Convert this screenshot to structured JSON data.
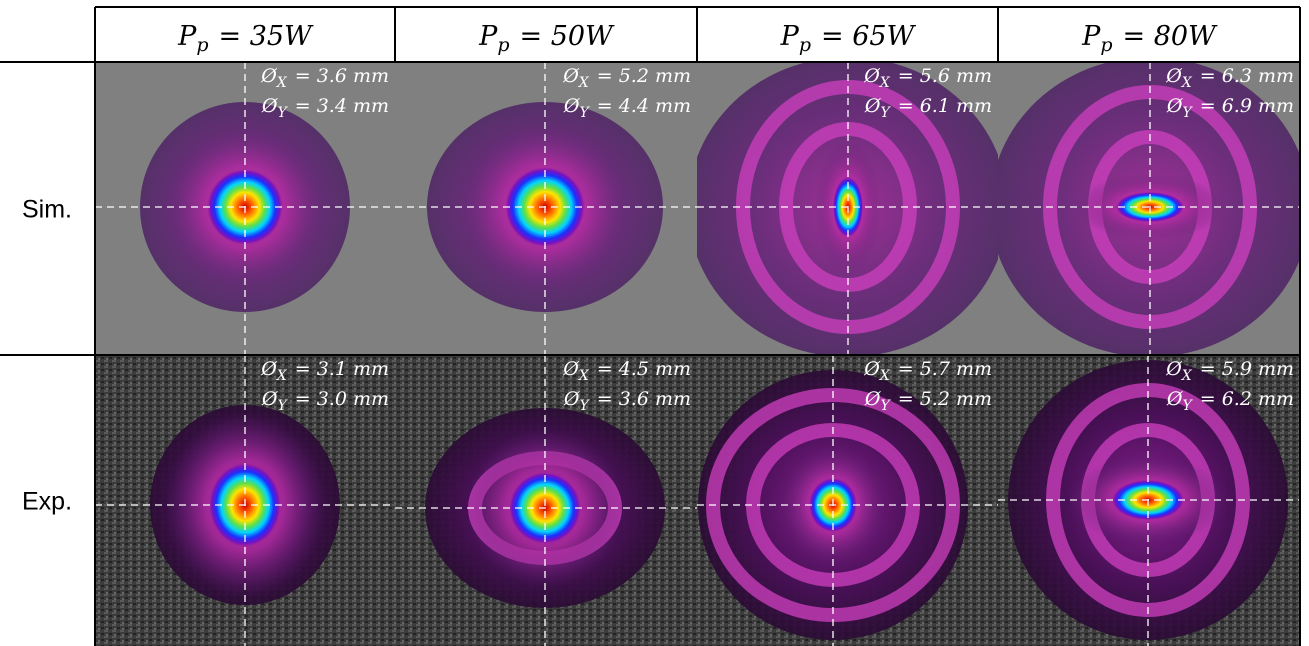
{
  "header": {
    "columns": [
      {
        "symbol": "P",
        "sub": "p",
        "rest": "= 35W"
      },
      {
        "symbol": "P",
        "sub": "p",
        "rest": "= 50W"
      },
      {
        "symbol": "P",
        "sub": "p",
        "rest": "= 65W"
      },
      {
        "symbol": "P",
        "sub": "p",
        "rest": "= 80W"
      }
    ]
  },
  "rows": [
    {
      "label": "Sim.",
      "cells": [
        {
          "x": {
            "symbol": "Ø",
            "sub": "X",
            "rest": "= 3.6 mm"
          },
          "y": {
            "symbol": "Ø",
            "sub": "Y",
            "rest": "= 3.4 mm"
          }
        },
        {
          "x": {
            "symbol": "Ø",
            "sub": "X",
            "rest": "= 5.2 mm"
          },
          "y": {
            "symbol": "Ø",
            "sub": "Y",
            "rest": "= 4.4 mm"
          }
        },
        {
          "x": {
            "symbol": "Ø",
            "sub": "X",
            "rest": "= 5.6 mm"
          },
          "y": {
            "symbol": "Ø",
            "sub": "Y",
            "rest": "= 6.1 mm"
          }
        },
        {
          "x": {
            "symbol": "Ø",
            "sub": "X",
            "rest": "= 6.3 mm"
          },
          "y": {
            "symbol": "Ø",
            "sub": "Y",
            "rest": "= 6.9 mm"
          }
        }
      ]
    },
    {
      "label": "Exp.",
      "cells": [
        {
          "x": {
            "symbol": "Ø",
            "sub": "X",
            "rest": "= 3.1 mm"
          },
          "y": {
            "symbol": "Ø",
            "sub": "Y",
            "rest": "= 3.0 mm"
          }
        },
        {
          "x": {
            "symbol": "Ø",
            "sub": "X",
            "rest": "= 4.5 mm"
          },
          "y": {
            "symbol": "Ø",
            "sub": "Y",
            "rest": "= 3.6 mm"
          }
        },
        {
          "x": {
            "symbol": "Ø",
            "sub": "X",
            "rest": "= 5.7 mm"
          },
          "y": {
            "symbol": "Ø",
            "sub": "Y",
            "rest": "= 5.2 mm"
          }
        },
        {
          "x": {
            "symbol": "Ø",
            "sub": "X",
            "rest": "= 5.9 mm"
          },
          "y": {
            "symbol": "Ø",
            "sub": "Y",
            "rest": "= 6.2 mm"
          }
        }
      ]
    }
  ]
}
